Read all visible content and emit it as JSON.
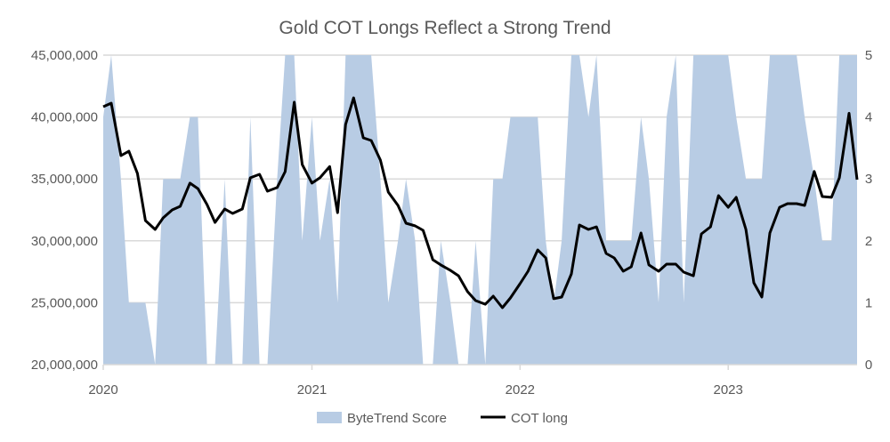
{
  "chart_data": {
    "type": "area+line",
    "title": "Gold COT Longs Reflect a Strong Trend",
    "x_ticks": [
      "2020",
      "2021",
      "2022",
      "2023"
    ],
    "y_left": {
      "range": [
        20000000,
        45000000
      ],
      "ticks": [
        "20,000,000",
        "25,000,000",
        "30,000,000",
        "35,000,000",
        "40,000,000",
        "45,000,000"
      ]
    },
    "y_right": {
      "range": [
        0,
        5
      ],
      "ticks": [
        "0",
        "1",
        "2",
        "3",
        "4",
        "5"
      ]
    },
    "grid": true,
    "legend_position": "bottom",
    "colors": {
      "score": "#b8cce4",
      "cot": "#000000",
      "grid": "#d9d9d9",
      "text": "#595959"
    },
    "dates": [
      "2020-01-01",
      "2020-01-15",
      "2020-02-01",
      "2020-02-15",
      "2020-03-01",
      "2020-03-15",
      "2020-04-01",
      "2020-04-15",
      "2020-05-01",
      "2020-05-15",
      "2020-06-01",
      "2020-06-15",
      "2020-07-01",
      "2020-07-15",
      "2020-08-01",
      "2020-08-15",
      "2020-09-01",
      "2020-09-15",
      "2020-10-01",
      "2020-10-15",
      "2020-11-01",
      "2020-11-15",
      "2020-12-01",
      "2020-12-15",
      "2021-01-01",
      "2021-01-15",
      "2021-02-01",
      "2021-02-15",
      "2021-03-01",
      "2021-03-15",
      "2021-04-01",
      "2021-04-15",
      "2021-05-01",
      "2021-05-15",
      "2021-06-01",
      "2021-06-15",
      "2021-07-01",
      "2021-07-15",
      "2021-08-01",
      "2021-08-15",
      "2021-09-01",
      "2021-09-15",
      "2021-10-01",
      "2021-10-15",
      "2021-11-01",
      "2021-11-15",
      "2021-12-01",
      "2021-12-15",
      "2022-01-01",
      "2022-01-15",
      "2022-02-01",
      "2022-02-15",
      "2022-03-01",
      "2022-03-15",
      "2022-04-01",
      "2022-04-15",
      "2022-05-01",
      "2022-05-15",
      "2022-06-01",
      "2022-06-15",
      "2022-07-01",
      "2022-07-15",
      "2022-08-01",
      "2022-08-15",
      "2022-09-01",
      "2022-09-15",
      "2022-10-01",
      "2022-10-15",
      "2022-11-01",
      "2022-11-15",
      "2022-12-01",
      "2022-12-15",
      "2023-01-01",
      "2023-01-15",
      "2023-02-01",
      "2023-02-15",
      "2023-03-01",
      "2023-03-15",
      "2023-04-01",
      "2023-04-15",
      "2023-05-01",
      "2023-05-15",
      "2023-06-01",
      "2023-06-15",
      "2023-07-01",
      "2023-07-15",
      "2023-08-01",
      "2023-08-15"
    ],
    "series": [
      {
        "name": "ByteTrend Score",
        "axis": "right",
        "kind": "area",
        "values": [
          4,
          5,
          3,
          1,
          1,
          1,
          0,
          3,
          3,
          3,
          4,
          4,
          0,
          0,
          3,
          0,
          0,
          4,
          0,
          0,
          3,
          5,
          5,
          2,
          4,
          2,
          3,
          1,
          5,
          5,
          5,
          5,
          3,
          1,
          2,
          3,
          2,
          0,
          0,
          2,
          1,
          0,
          0,
          2,
          0,
          3,
          3,
          4,
          4,
          4,
          4,
          2,
          1,
          2,
          5,
          5,
          4,
          5,
          2,
          2,
          2,
          2,
          4,
          3,
          1,
          4,
          5,
          1,
          5,
          5,
          5,
          5,
          5,
          4,
          3,
          3,
          3,
          5,
          5,
          5,
          5,
          4,
          3,
          2,
          2,
          5,
          5,
          5
        ]
      },
      {
        "name": "COT long",
        "axis": "left",
        "kind": "line",
        "values": [
          40830000,
          41120000,
          36880000,
          37240000,
          35450000,
          31640000,
          30920000,
          31850000,
          32500000,
          32790000,
          34660000,
          34220000,
          32930000,
          31490000,
          32570000,
          32210000,
          32570000,
          35090000,
          35370000,
          34010000,
          34300000,
          35590000,
          41200000,
          36160000,
          34660000,
          35090000,
          36000000,
          32280000,
          39400000,
          41550000,
          38320000,
          38100000,
          36520000,
          33940000,
          32860000,
          31420000,
          31210000,
          30850000,
          28480000,
          28050000,
          27610000,
          27180000,
          25890000,
          25170000,
          24880000,
          25530000,
          24600000,
          25390000,
          26540000,
          27540000,
          29270000,
          28620000,
          25320000,
          25460000,
          27330000,
          31280000,
          30920000,
          31130000,
          28980000,
          28620000,
          27540000,
          27900000,
          30630000,
          28050000,
          27540000,
          28120000,
          28120000,
          27470000,
          27180000,
          30560000,
          31130000,
          33650000,
          32710000,
          33510000,
          30920000,
          26610000,
          25460000,
          30630000,
          32710000,
          33000000,
          33000000,
          32860000,
          35600000,
          33580000,
          33510000,
          35090000,
          40300000,
          34940000
        ]
      }
    ]
  }
}
